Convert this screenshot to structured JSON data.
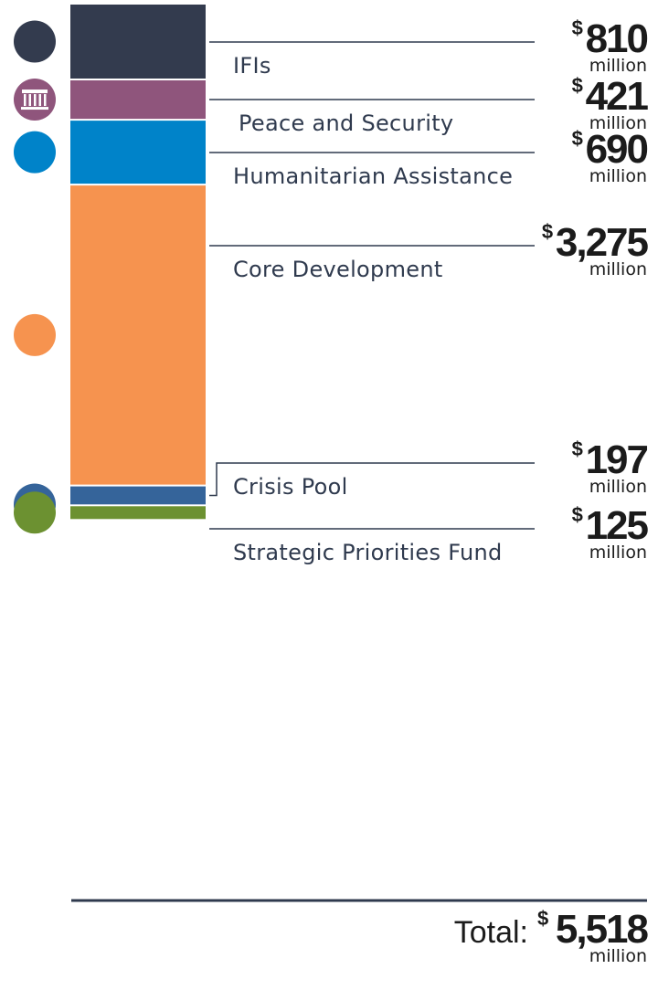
{
  "chart_data": {
    "type": "bar",
    "stacked": true,
    "currency": "$",
    "unit": "million",
    "categories": [
      "IFIs",
      "Peace and Security",
      "Humanitarian Assistance",
      "Core Development",
      "Crisis Pool",
      "Strategic Priorities Fund"
    ],
    "values": [
      810,
      421,
      690,
      3275,
      197,
      125
    ],
    "value_labels": [
      "810",
      "421",
      "690",
      "3,275",
      "197",
      "125"
    ],
    "colors": [
      "#333b4e",
      "#8f557c",
      "#0083c9",
      "#f6934f",
      "#35649a",
      "#6c9131"
    ],
    "icons": [
      "ifi-dot-icon",
      "institution-building-icon",
      "humanitarian-dot-icon",
      "core-development-dot-icon",
      "crisis-pool-dot-icon",
      "strategic-priorities-dot-icon"
    ],
    "total": {
      "label": "Total:",
      "value": "5,518",
      "unit": "million",
      "currency": "$"
    }
  }
}
